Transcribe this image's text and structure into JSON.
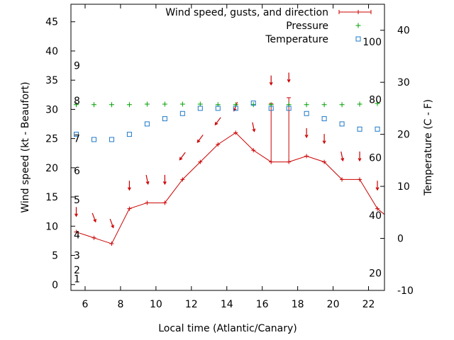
{
  "chart_data": {
    "type": "line",
    "xlabel": "Local time (Atlantic/Canary)",
    "ylabel": "Wind speed (kt - Beaufort)",
    "y2label": "Temperature (C - F)",
    "xlim": [
      5.2,
      22.9
    ],
    "ylim": [
      -1,
      48
    ],
    "y2lim": [
      -10,
      45
    ],
    "x_ticks": [
      6,
      8,
      10,
      12,
      14,
      16,
      18,
      20,
      22
    ],
    "y_ticks": [
      0,
      5,
      10,
      15,
      20,
      25,
      30,
      35,
      40,
      45
    ],
    "y2_ticks": [
      -10,
      0,
      10,
      20,
      30,
      40
    ],
    "beaufort_labels": [
      {
        "y": 1,
        "label": "1"
      },
      {
        "y": 2.5,
        "label": "2"
      },
      {
        "y": 5,
        "label": "3"
      },
      {
        "y": 8.5,
        "label": "4"
      },
      {
        "y": 14.5,
        "label": "5"
      },
      {
        "y": 19.5,
        "label": "6"
      },
      {
        "y": 25,
        "label": "7"
      },
      {
        "y": 31.5,
        "label": "8"
      },
      {
        "y": 37.5,
        "label": "9"
      }
    ],
    "fahrenheit_labels": [
      {
        "y2": -6.67,
        "label": "20"
      },
      {
        "y2": 4.44,
        "label": "40"
      },
      {
        "y2": 15.56,
        "label": "60"
      },
      {
        "y2": 26.67,
        "label": "80"
      },
      {
        "y2": 37.78,
        "label": "100"
      }
    ],
    "legend_position": "top-right",
    "grid": false,
    "series": [
      {
        "name": "Wind speed, gusts, and direction",
        "color": "#cc0000",
        "x": [
          5.5,
          6.5,
          7.5,
          8.5,
          9.5,
          10.5,
          11.5,
          12.5,
          13.5,
          14.5,
          15.5,
          16.5,
          17.5,
          18.5,
          19.5,
          20.5,
          21.5,
          22.5,
          22.9
        ],
        "values": [
          9,
          8,
          7,
          13,
          14,
          14,
          18,
          21,
          24,
          26,
          23,
          21,
          21,
          22,
          21,
          18,
          18,
          13,
          12
        ],
        "gusts": [
          {
            "x": 16.5,
            "low": 21,
            "high": 31
          },
          {
            "x": 17.5,
            "low": 21,
            "high": 32
          }
        ],
        "direction_arrows": [
          {
            "x": 5.5,
            "y": 12.5,
            "dx": 0,
            "dy": 1
          },
          {
            "x": 6.5,
            "y": 11.5,
            "dx": 0.35,
            "dy": 0.94
          },
          {
            "x": 7.5,
            "y": 10.5,
            "dx": 0.35,
            "dy": 0.94
          },
          {
            "x": 8.5,
            "y": 17,
            "dx": 0,
            "dy": 1
          },
          {
            "x": 9.5,
            "y": 18,
            "dx": 0.2,
            "dy": 0.98
          },
          {
            "x": 10.5,
            "y": 18,
            "dx": 0,
            "dy": 1
          },
          {
            "x": 11.5,
            "y": 22,
            "dx": -0.6,
            "dy": 0.8
          },
          {
            "x": 12.5,
            "y": 25,
            "dx": -0.6,
            "dy": 0.8
          },
          {
            "x": 13.5,
            "y": 28,
            "dx": -0.6,
            "dy": 0.8
          },
          {
            "x": 14.5,
            "y": 30.5,
            "dx": -0.35,
            "dy": 0.94
          },
          {
            "x": 15.5,
            "y": 27,
            "dx": 0.2,
            "dy": 0.98
          },
          {
            "x": 16.5,
            "y": 35,
            "dx": 0,
            "dy": 1
          },
          {
            "x": 17.5,
            "y": 35.5,
            "dx": 0,
            "dy": 1
          },
          {
            "x": 18.5,
            "y": 26,
            "dx": 0,
            "dy": 1
          },
          {
            "x": 19.5,
            "y": 25,
            "dx": 0,
            "dy": 1
          },
          {
            "x": 20.5,
            "y": 22,
            "dx": 0.2,
            "dy": 0.98
          },
          {
            "x": 21.5,
            "y": 22,
            "dx": 0,
            "dy": 1
          },
          {
            "x": 22.5,
            "y": 17,
            "dx": 0,
            "dy": 1
          }
        ]
      },
      {
        "name": "Pressure",
        "color": "#00a000",
        "x": [
          5.5,
          6.5,
          7.5,
          8.5,
          9.5,
          10.5,
          11.5,
          12.5,
          13.5,
          14.5,
          15.5,
          16.5,
          17.5,
          18.5,
          19.5,
          20.5,
          21.5,
          22.5
        ],
        "values": [
          30.8,
          30.8,
          30.8,
          30.8,
          30.9,
          30.9,
          30.9,
          30.9,
          30.8,
          30.8,
          30.8,
          30.8,
          30.8,
          30.8,
          30.8,
          30.8,
          30.9,
          31.0
        ]
      },
      {
        "name": "Temperature",
        "color": "#1f78c8",
        "axis": "y2",
        "x": [
          5.5,
          6.5,
          7.5,
          8.5,
          9.5,
          10.5,
          11.5,
          12.5,
          13.5,
          14.5,
          15.5,
          16.5,
          17.5,
          18.5,
          19.5,
          20.5,
          21.5,
          22.5
        ],
        "values": [
          20,
          19,
          19,
          20,
          22,
          23,
          24,
          25,
          25,
          25,
          26,
          25,
          25,
          24,
          23,
          22,
          21,
          21
        ]
      }
    ]
  }
}
